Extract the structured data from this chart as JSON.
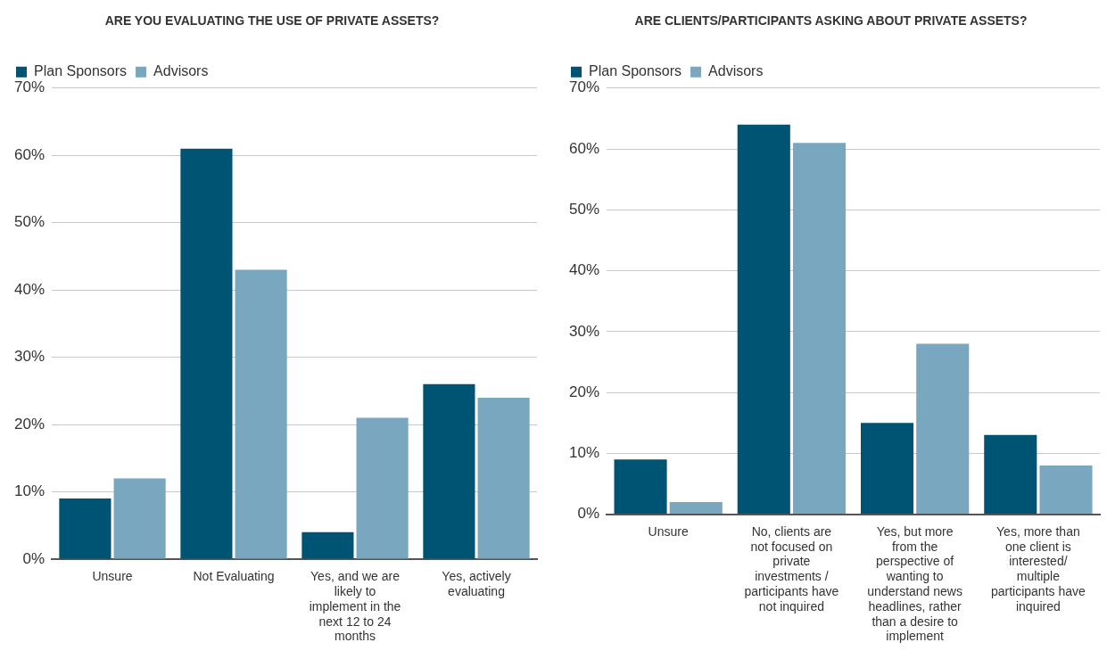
{
  "chart_data": [
    {
      "type": "bar",
      "title": "ARE YOU EVALUATING THE USE OF PRIVATE ASSETS?",
      "categories": [
        "Unsure",
        "Not Evaluating",
        "Yes, and we are likely to implement in the next 12 to 24 months",
        "Yes, actively evaluating"
      ],
      "series": [
        {
          "name": "Plan Sponsors",
          "color": "#005473",
          "values": [
            9,
            61,
            4,
            26
          ]
        },
        {
          "name": "Advisors",
          "color": "#79a7c0",
          "values": [
            12,
            43,
            21,
            24
          ]
        }
      ],
      "ylim": [
        0,
        70
      ],
      "yticks": [
        {
          "value": 0,
          "label": "0%"
        },
        {
          "value": 10,
          "label": "10%"
        },
        {
          "value": 20,
          "label": "20%"
        },
        {
          "value": 30,
          "label": "30%"
        },
        {
          "value": 40,
          "label": "40%"
        },
        {
          "value": 50,
          "label": "50%"
        },
        {
          "value": 60,
          "label": "60%"
        },
        {
          "value": 70,
          "label": "70%"
        }
      ],
      "grid": "y",
      "legend": "top left"
    },
    {
      "type": "bar",
      "title": "ARE CLIENTS/PARTICIPANTS ASKING ABOUT PRIVATE ASSETS?",
      "categories": [
        "Unsure",
        "No, clients are not focused on private investments / participants have not inquired",
        "Yes, but more from the perspective of wanting to understand news headlines, rather than a desire to implement",
        "Yes, more than one client is interested/ multiple participants have inquired"
      ],
      "series": [
        {
          "name": "Plan Sponsors",
          "color": "#005473",
          "values": [
            9,
            64,
            15,
            13
          ]
        },
        {
          "name": "Advisors",
          "color": "#79a7c0",
          "values": [
            2,
            61,
            28,
            8
          ]
        }
      ],
      "ylim": [
        0,
        70
      ],
      "yticks": [
        {
          "value": 0,
          "label": "0%"
        },
        {
          "value": 10,
          "label": "10%"
        },
        {
          "value": 20,
          "label": "20%"
        },
        {
          "value": 30,
          "label": "30%"
        },
        {
          "value": 40,
          "label": "40%"
        },
        {
          "value": 50,
          "label": "50%"
        },
        {
          "value": 60,
          "label": "60%"
        },
        {
          "value": 70,
          "label": "70%"
        }
      ],
      "grid": "y",
      "legend": "top left"
    }
  ]
}
